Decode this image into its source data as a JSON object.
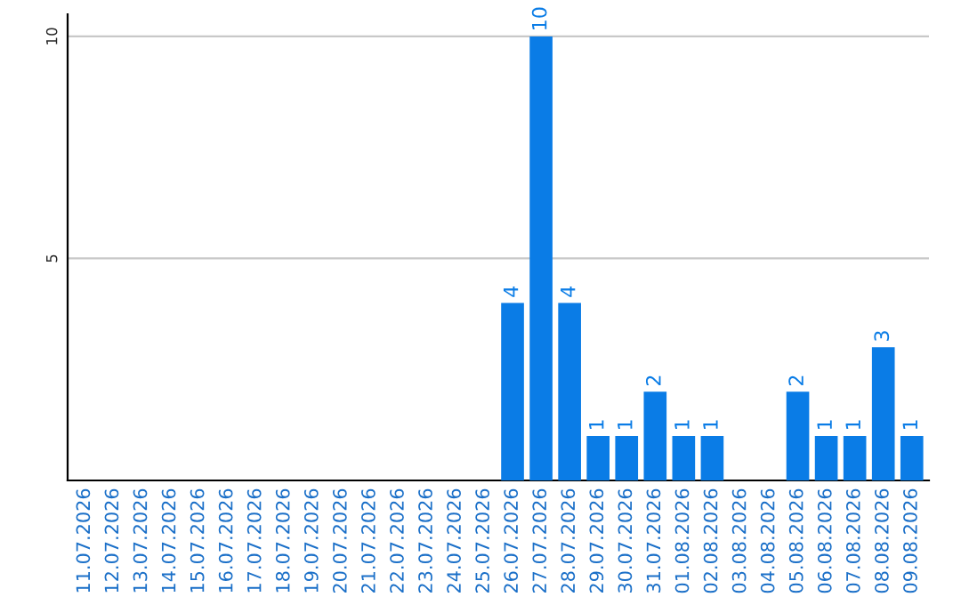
{
  "chart_data": {
    "type": "bar",
    "categories": [
      "11.07.2026",
      "12.07.2026",
      "13.07.2026",
      "14.07.2026",
      "15.07.2026",
      "16.07.2026",
      "17.07.2026",
      "18.07.2026",
      "19.07.2026",
      "20.07.2026",
      "21.07.2026",
      "22.07.2026",
      "23.07.2026",
      "24.07.2026",
      "25.07.2026",
      "26.07.2026",
      "27.07.2026",
      "28.07.2026",
      "29.07.2026",
      "30.07.2026",
      "31.07.2026",
      "01.08.2026",
      "02.08.2026",
      "03.08.2026",
      "04.08.2026",
      "05.08.2026",
      "06.08.2026",
      "07.08.2026",
      "08.08.2026",
      "09.08.2026"
    ],
    "values": [
      0,
      0,
      0,
      0,
      0,
      0,
      0,
      0,
      0,
      0,
      0,
      0,
      0,
      0,
      0,
      4,
      10,
      4,
      1,
      1,
      2,
      1,
      1,
      0,
      0,
      2,
      1,
      1,
      3,
      1
    ],
    "value_labels": [
      null,
      null,
      null,
      null,
      null,
      null,
      null,
      null,
      null,
      null,
      null,
      null,
      null,
      null,
      null,
      "4",
      "10",
      "4",
      "1",
      "1",
      "2",
      "1",
      "1",
      null,
      null,
      "2",
      "1",
      "1",
      "3",
      "1"
    ],
    "color": "#0a7ce6",
    "ylim": [
      0,
      10.5
    ],
    "yticks": [
      5,
      10
    ],
    "grid": "y"
  }
}
